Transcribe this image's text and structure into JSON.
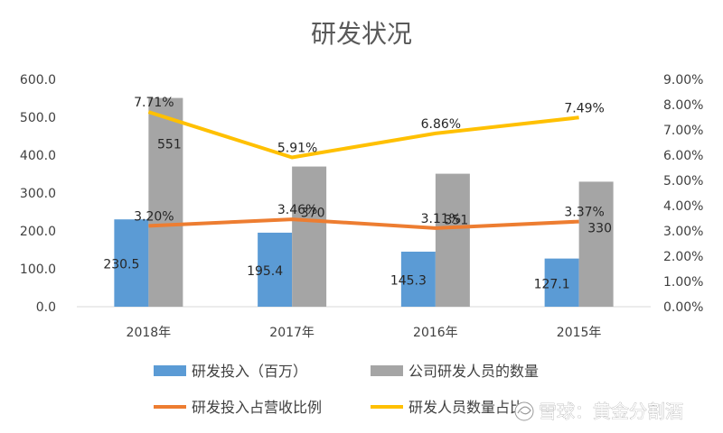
{
  "chart_data": {
    "type": "bar",
    "title": "研发状况",
    "categories": [
      "2018年",
      "2017年",
      "2016年",
      "2015年"
    ],
    "y_left": {
      "ylim": [
        0,
        600
      ],
      "ticks": [
        "0.0",
        "100.0",
        "200.0",
        "300.0",
        "400.0",
        "500.0",
        "600.0"
      ]
    },
    "y_right": {
      "ylim": [
        0,
        9
      ],
      "ticks": [
        "0.00%",
        "1.00%",
        "2.00%",
        "3.00%",
        "4.00%",
        "5.00%",
        "6.00%",
        "7.00%",
        "8.00%",
        "9.00%"
      ]
    },
    "series": [
      {
        "name": "研发投入（百万）",
        "type": "bar",
        "axis": "left",
        "color": "#5b9bd5",
        "values": [
          230.5,
          195.4,
          145.3,
          127.1
        ],
        "labels": [
          "230.5",
          "195.4",
          "145.3",
          "127.1"
        ]
      },
      {
        "name": "公司研发人员的数量",
        "type": "bar",
        "axis": "left",
        "color": "#a5a5a5",
        "values": [
          551,
          370,
          351,
          330
        ],
        "labels": [
          "551",
          "370",
          "351",
          "330"
        ]
      },
      {
        "name": "研发投入占营收比例",
        "type": "line",
        "axis": "right",
        "color": "#ed7d31",
        "values": [
          3.2,
          3.46,
          3.11,
          3.37
        ],
        "labels": [
          "3.20%",
          "3.46%",
          "3.11%",
          "3.37%"
        ]
      },
      {
        "name": "研发人员数量占比",
        "type": "line",
        "axis": "right",
        "color": "#ffc000",
        "values": [
          7.71,
          5.91,
          6.86,
          7.49
        ],
        "labels": [
          "7.71%",
          "5.91%",
          "6.86%",
          "7.49%"
        ]
      }
    ],
    "legend_position": "bottom"
  },
  "watermark": "雪球：黄金分割酒"
}
